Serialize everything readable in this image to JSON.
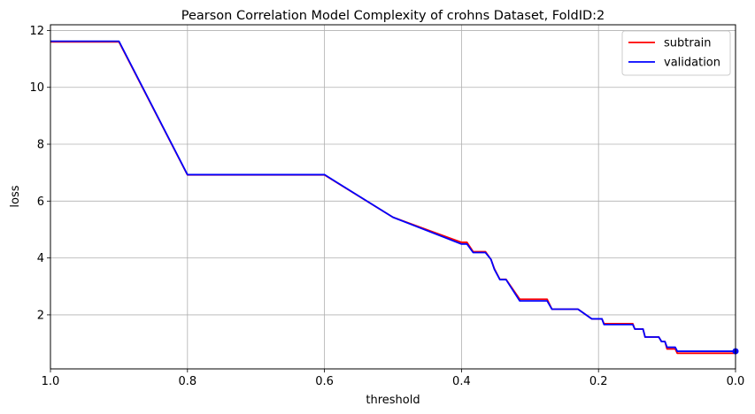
{
  "chart_data": {
    "type": "line",
    "title": "Pearson Correlation Model Complexity of crohns Dataset, FoldID:2",
    "xlabel": "threshold",
    "ylabel": "loss",
    "xlim": [
      1.0,
      0.0
    ],
    "ylim": [
      0.1,
      12.2
    ],
    "x_inverted": true,
    "grid": true,
    "legend_position": "top-right",
    "x_ticks": [
      1.0,
      0.8,
      0.6,
      0.4,
      0.2,
      0.0
    ],
    "x_tick_labels": [
      "1.0",
      "0.8",
      "0.6",
      "0.4",
      "0.2",
      "0.0"
    ],
    "y_ticks": [
      2,
      4,
      6,
      8,
      10,
      12
    ],
    "y_tick_labels": [
      "2",
      "4",
      "6",
      "8",
      "10",
      "12"
    ],
    "series": [
      {
        "name": "subtrain",
        "color": "#ff0000",
        "points": [
          [
            1.0,
            11.6
          ],
          [
            0.9,
            11.6
          ],
          [
            0.8,
            6.92
          ],
          [
            0.6,
            6.92
          ],
          [
            0.5,
            5.43
          ],
          [
            0.4,
            4.55
          ],
          [
            0.392,
            4.55
          ],
          [
            0.383,
            4.22
          ],
          [
            0.365,
            4.22
          ],
          [
            0.357,
            3.95
          ],
          [
            0.352,
            3.62
          ],
          [
            0.344,
            3.25
          ],
          [
            0.335,
            3.25
          ],
          [
            0.315,
            2.55
          ],
          [
            0.275,
            2.55
          ],
          [
            0.268,
            2.2
          ],
          [
            0.23,
            2.2
          ],
          [
            0.21,
            1.86
          ],
          [
            0.195,
            1.86
          ],
          [
            0.192,
            1.69
          ],
          [
            0.15,
            1.69
          ],
          [
            0.147,
            1.5
          ],
          [
            0.135,
            1.5
          ],
          [
            0.132,
            1.22
          ],
          [
            0.112,
            1.22
          ],
          [
            0.108,
            1.06
          ],
          [
            0.103,
            1.06
          ],
          [
            0.1,
            0.8
          ],
          [
            0.088,
            0.8
          ],
          [
            0.085,
            0.65
          ],
          [
            0.0,
            0.65
          ],
          [
            0.0,
            0.72
          ]
        ]
      },
      {
        "name": "validation",
        "color": "#0000ff",
        "points": [
          [
            1.0,
            11.62
          ],
          [
            0.9,
            11.62
          ],
          [
            0.8,
            6.93
          ],
          [
            0.6,
            6.93
          ],
          [
            0.5,
            5.43
          ],
          [
            0.4,
            4.49
          ],
          [
            0.392,
            4.49
          ],
          [
            0.383,
            4.19
          ],
          [
            0.365,
            4.19
          ],
          [
            0.357,
            3.95
          ],
          [
            0.352,
            3.6
          ],
          [
            0.344,
            3.24
          ],
          [
            0.335,
            3.24
          ],
          [
            0.315,
            2.49
          ],
          [
            0.275,
            2.49
          ],
          [
            0.268,
            2.2
          ],
          [
            0.23,
            2.2
          ],
          [
            0.21,
            1.86
          ],
          [
            0.195,
            1.86
          ],
          [
            0.192,
            1.66
          ],
          [
            0.15,
            1.66
          ],
          [
            0.147,
            1.5
          ],
          [
            0.135,
            1.5
          ],
          [
            0.132,
            1.22
          ],
          [
            0.112,
            1.22
          ],
          [
            0.108,
            1.06
          ],
          [
            0.103,
            1.06
          ],
          [
            0.1,
            0.86
          ],
          [
            0.088,
            0.86
          ],
          [
            0.085,
            0.72
          ],
          [
            0.0,
            0.72
          ],
          [
            0.0,
            0.72
          ]
        ]
      }
    ]
  }
}
